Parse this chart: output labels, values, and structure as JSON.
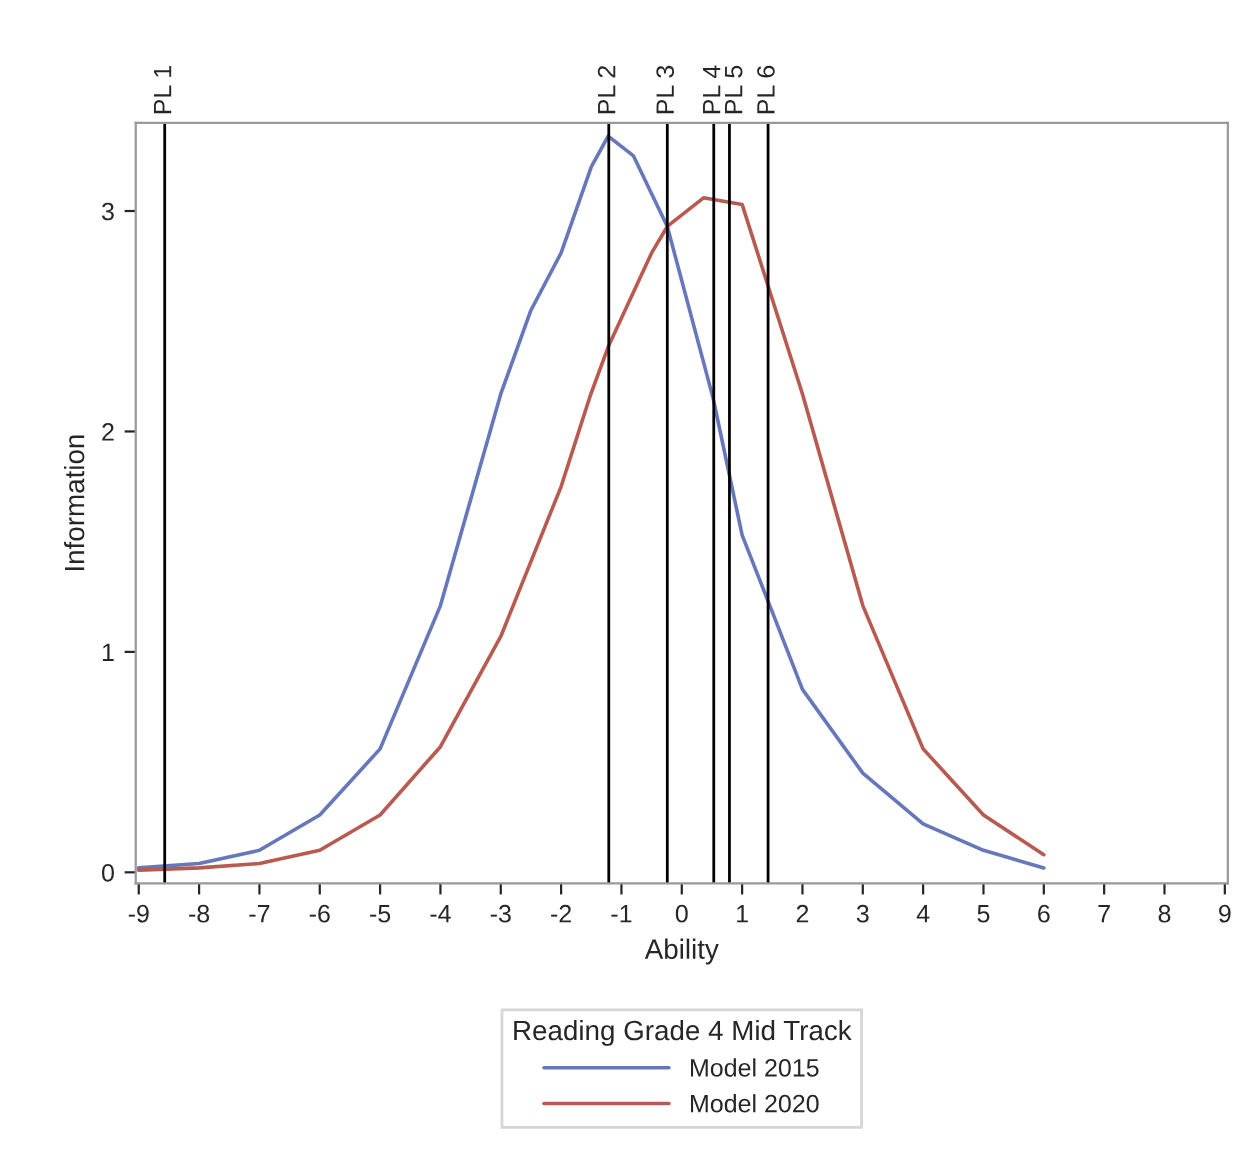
{
  "chart_data": {
    "type": "line",
    "xlabel": "Ability",
    "ylabel": "Information",
    "legend_title": "Reading Grade 4 Mid Track",
    "xlim": [
      -9.05,
      9.05
    ],
    "xticks": [
      -9,
      -8,
      -7,
      -6,
      -5,
      -4,
      -3,
      -2,
      -1,
      0,
      1,
      2,
      3,
      4,
      5,
      6,
      7,
      8,
      9
    ],
    "ylim": [
      -0.05,
      3.4
    ],
    "yticks": [
      0,
      1,
      2,
      3
    ],
    "grid": false,
    "legend": "bottom",
    "marker": "none",
    "line_style": "solid",
    "series": [
      {
        "name": "Model 2015",
        "color": "#6677bb",
        "x": [
          -9,
          -8,
          -7,
          -6,
          -5,
          -4,
          -3,
          -2.5,
          -2,
          -1.5,
          -1.22,
          -0.8,
          -0.24,
          0.52,
          1,
          1.43,
          2,
          3,
          4,
          5,
          6
        ],
        "values": [
          0.02,
          0.04,
          0.1,
          0.26,
          0.56,
          1.21,
          2.17,
          2.55,
          2.81,
          3.2,
          3.34,
          3.25,
          2.93,
          2.15,
          1.53,
          1.23,
          0.83,
          0.45,
          0.22,
          0.1,
          0.02
        ]
      },
      {
        "name": "Model 2020",
        "color": "#b85a50",
        "x": [
          -9,
          -8,
          -7,
          -6,
          -5,
          -4,
          -3,
          -2,
          -1.52,
          -1.21,
          -0.5,
          -0.24,
          0.36,
          1,
          1.43,
          2,
          3,
          4,
          5,
          6
        ],
        "values": [
          0.01,
          0.02,
          0.04,
          0.1,
          0.26,
          0.57,
          1.07,
          1.75,
          2.16,
          2.39,
          2.81,
          2.93,
          3.06,
          3.03,
          2.66,
          2.17,
          1.21,
          0.56,
          0.26,
          0.08
        ]
      }
    ],
    "ref_lines": [
      {
        "axis": "x",
        "value": -8.57,
        "label": "PL 1",
        "color": "#000000"
      },
      {
        "axis": "x",
        "value": -1.21,
        "label": "PL 2",
        "color": "#000000"
      },
      {
        "axis": "x",
        "value": -0.24,
        "label": "PL 3",
        "color": "#000000"
      },
      {
        "axis": "x",
        "value": 0.53,
        "label": "PL 4",
        "color": "#000000"
      },
      {
        "axis": "x",
        "value": 0.79,
        "label": "PL 5",
        "color": "#000000"
      },
      {
        "axis": "x",
        "value": 1.43,
        "label": "PL 6",
        "color": "#000000"
      }
    ]
  }
}
